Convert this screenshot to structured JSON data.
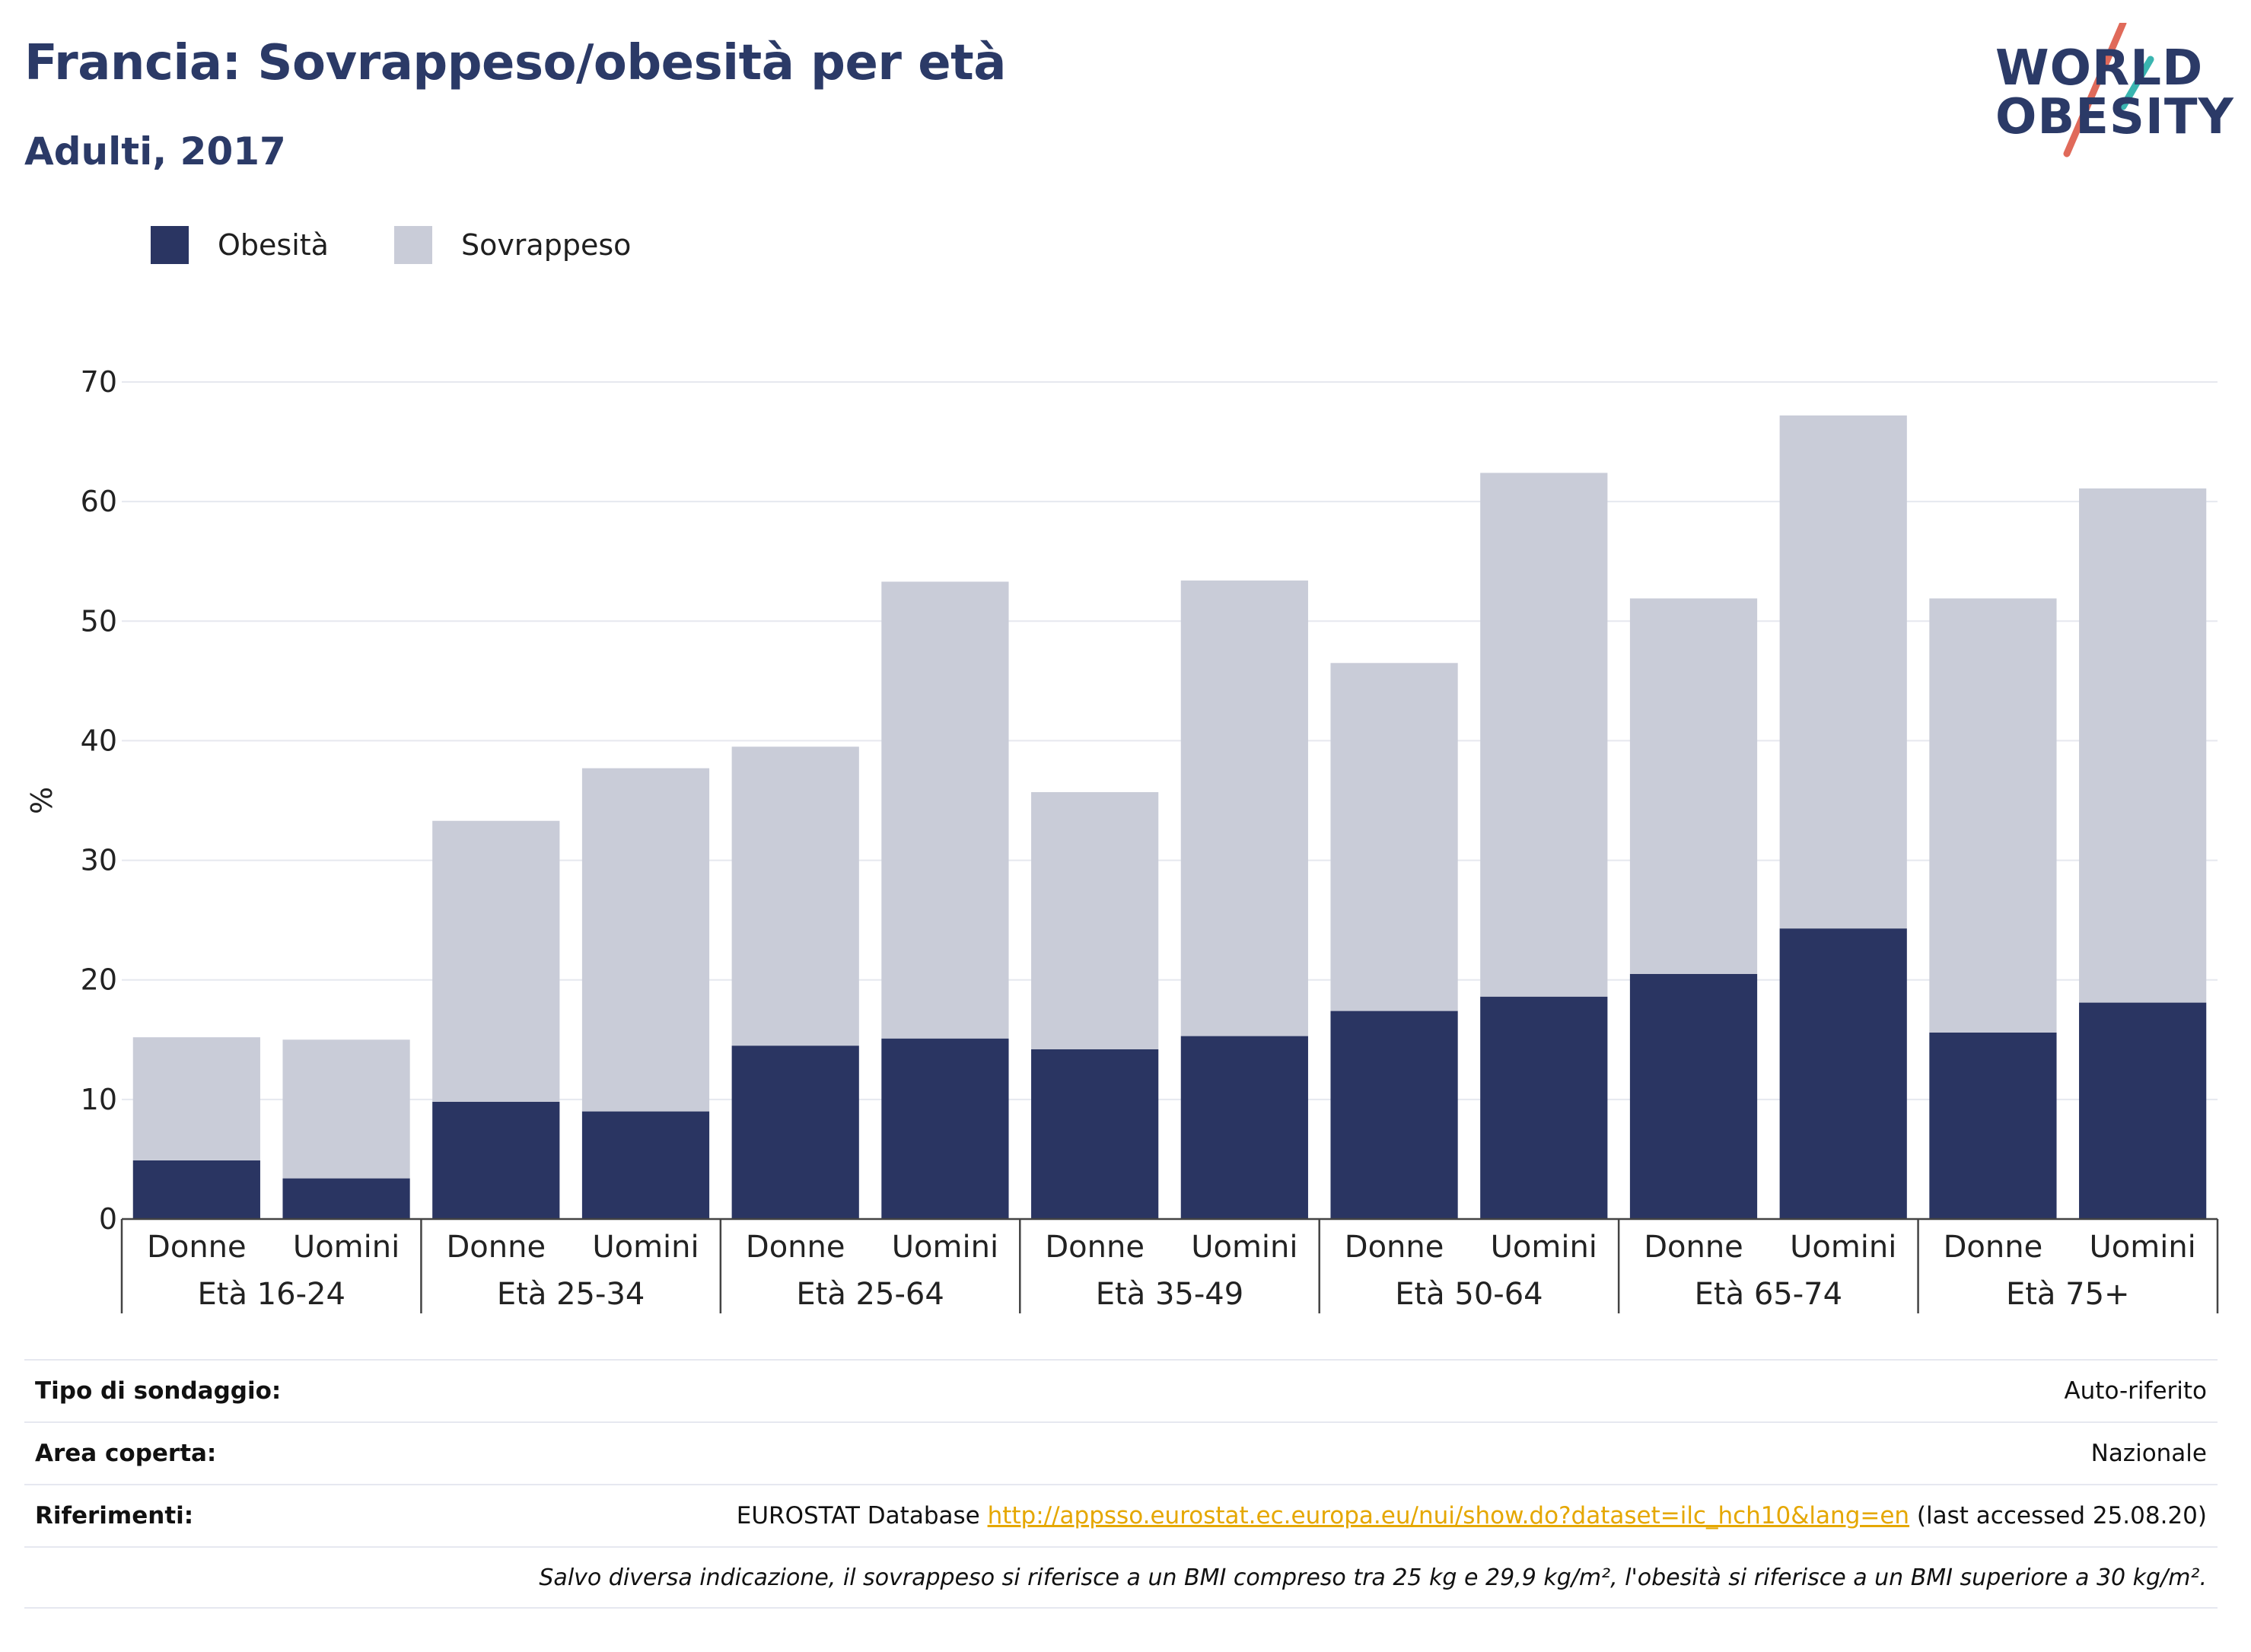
{
  "header": {
    "title": "Francia: Sovrappeso/obesità per età",
    "subtitle": "Adulti, 2017"
  },
  "logo": {
    "line1": "WORLD",
    "line2": "OBESITY"
  },
  "legend": [
    {
      "label": "Obesità",
      "color": "#2a3562"
    },
    {
      "label": "Sovrappeso",
      "color": "#c9ccd8"
    }
  ],
  "chart_data": {
    "type": "bar",
    "stacked": true,
    "ylabel": "%",
    "ylim": [
      0,
      70
    ],
    "yticks": [
      0,
      10,
      20,
      30,
      40,
      50,
      60,
      70
    ],
    "grid": true,
    "legend_position": "top-left",
    "groups": [
      "Età 16-24",
      "Età 25-34",
      "Età 25-64",
      "Età 35-49",
      "Età 50-64",
      "Età 65-74",
      "Età 75+"
    ],
    "subcategories": [
      "Donne",
      "Uomini"
    ],
    "series": [
      {
        "name": "Obesità",
        "color": "#2a3562",
        "values": [
          4.9,
          3.4,
          9.8,
          9.0,
          14.5,
          15.1,
          14.2,
          15.3,
          17.4,
          18.6,
          20.5,
          24.3,
          15.6,
          18.1
        ]
      },
      {
        "name": "Sovrappeso",
        "color": "#c9ccd8",
        "values": [
          10.3,
          11.6,
          23.5,
          28.7,
          25.0,
          38.2,
          21.5,
          38.1,
          29.1,
          43.8,
          31.4,
          42.9,
          36.3,
          43.0
        ]
      }
    ]
  },
  "info": {
    "survey_label": "Tipo di sondaggio:",
    "survey_value": "Auto-riferito",
    "area_label": "Area coperta:",
    "area_value": "Nazionale",
    "ref_label": "Riferimenti:",
    "ref_prefix": "EUROSTAT Database",
    "ref_link": "http://appsso.eurostat.ec.europa.eu/nui/show.do?dataset=ilc_hch10&lang=en",
    "ref_suffix": "(last accessed 25.08.20)",
    "note": "Salvo diversa indicazione, il sovrappeso si riferisce a un BMI compreso tra 25 kg e 29,9 kg/m², l'obesità si riferisce a un BMI superiore a 30 kg/m²."
  }
}
